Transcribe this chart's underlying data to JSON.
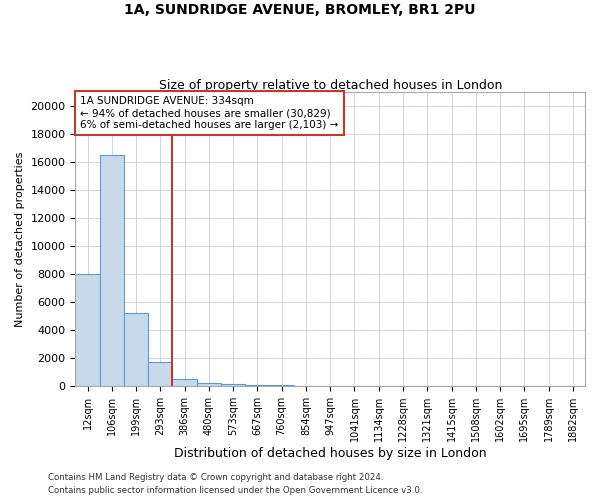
{
  "title_line1": "1A, SUNDRIDGE AVENUE, BROMLEY, BR1 2PU",
  "title_line2": "Size of property relative to detached houses in London",
  "xlabel": "Distribution of detached houses by size in London",
  "ylabel": "Number of detached properties",
  "categories": [
    "12sqm",
    "106sqm",
    "199sqm",
    "293sqm",
    "386sqm",
    "480sqm",
    "573sqm",
    "667sqm",
    "760sqm",
    "854sqm",
    "947sqm",
    "1041sqm",
    "1134sqm",
    "1228sqm",
    "1321sqm",
    "1415sqm",
    "1508sqm",
    "1602sqm",
    "1695sqm",
    "1789sqm",
    "1882sqm"
  ],
  "values": [
    8000,
    16500,
    5200,
    1700,
    500,
    200,
    150,
    100,
    70,
    0,
    0,
    0,
    0,
    0,
    0,
    0,
    0,
    0,
    0,
    0,
    0
  ],
  "bar_color": "#c9d9ec",
  "bar_edge_color": "#5b9bd5",
  "vline_x_index": 3.5,
  "vline_color": "#c0392b",
  "annotation_line1": "1A SUNDRIDGE AVENUE: 334sqm",
  "annotation_line2": "← 94% of detached houses are smaller (30,829)",
  "annotation_line3": "6% of semi-detached houses are larger (2,103) →",
  "annotation_box_color": "#c0392b",
  "ylim": [
    0,
    21000
  ],
  "yticks": [
    0,
    2000,
    4000,
    6000,
    8000,
    10000,
    12000,
    14000,
    16000,
    18000,
    20000
  ],
  "footer_line1": "Contains HM Land Registry data © Crown copyright and database right 2024.",
  "footer_line2": "Contains public sector information licensed under the Open Government Licence v3.0.",
  "bg_color": "#ffffff",
  "grid_color": "#ccd6e8"
}
